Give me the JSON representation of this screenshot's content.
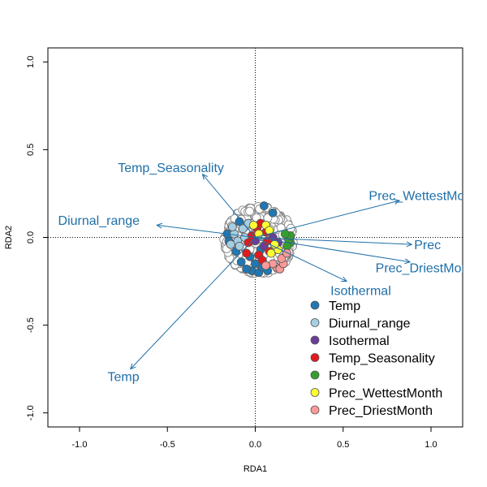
{
  "chart_data": {
    "type": "scatter",
    "title": "",
    "xlabel": "RDA1",
    "ylabel": "RDA2",
    "xlim": [
      -1.18,
      1.18
    ],
    "ylim": [
      -1.08,
      1.08
    ],
    "x_ticks": [
      -1.0,
      -0.5,
      0.0,
      0.5,
      1.0
    ],
    "x_tick_labels": [
      "-1.0",
      "-0.5",
      "0.0",
      "0.5",
      "1.0"
    ],
    "y_ticks": [
      -1.0,
      -0.5,
      0.0,
      0.5,
      1.0
    ],
    "y_tick_labels": [
      "-1.0",
      "-0.5",
      "0.0",
      "0.5",
      "1.0"
    ],
    "reference_lines": {
      "x": 0,
      "y": 0,
      "style": "dotted"
    },
    "grid": false,
    "legend_placement": "bottom-right",
    "arrow_color": "#1f6fa8",
    "arrows": [
      {
        "label": "Temp",
        "x": -0.71,
        "y": -0.75
      },
      {
        "label": "Diurnal_range",
        "x": -0.56,
        "y": 0.07
      },
      {
        "label": "Temp_Seasonality",
        "x": -0.3,
        "y": 0.36
      },
      {
        "label": "Prec_WettestMonth",
        "x": 0.82,
        "y": 0.21
      },
      {
        "label": "Prec",
        "x": 0.89,
        "y": -0.04
      },
      {
        "label": "Prec_DriestMonth",
        "x": 0.88,
        "y": -0.14
      },
      {
        "label": "Isothermal",
        "x": 0.52,
        "y": -0.25
      }
    ],
    "arrow_labels": [
      {
        "label": "Temp",
        "x": -0.75,
        "y": -0.79
      },
      {
        "label": "Diurnal_range",
        "x": -0.89,
        "y": 0.1
      },
      {
        "label": "Temp_Seasonality",
        "x": -0.48,
        "y": 0.4
      },
      {
        "label": "Prec_WettestMonth",
        "x": 0.97,
        "y": 0.24
      },
      {
        "label": "Prec",
        "x": 0.98,
        "y": -0.04
      },
      {
        "label": "Prec_DriestMonth",
        "x": 0.98,
        "y": -0.17
      },
      {
        "label": "Isothermal",
        "x": 0.6,
        "y": -0.3
      }
    ],
    "legend_entries": [
      {
        "name": "Temp",
        "color": "#1f78b4"
      },
      {
        "name": "Diurnal_range",
        "color": "#a6cee3"
      },
      {
        "name": "Isothermal",
        "color": "#6a3d9a"
      },
      {
        "name": "Temp_Seasonality",
        "color": "#e31a1c"
      },
      {
        "name": "Prec",
        "color": "#33a02c"
      },
      {
        "name": "Prec_WettestMonth",
        "color": "#ffff33"
      },
      {
        "name": "Prec_DriestMonth",
        "color": "#fb9a99"
      }
    ],
    "background_site_color": "#ffffff",
    "site_outline_color": "#888888",
    "sites_colored": [
      {
        "x": 0.05,
        "y": 0.18,
        "group": "Temp"
      },
      {
        "x": -0.02,
        "y": -0.19,
        "group": "Temp"
      },
      {
        "x": 0.02,
        "y": -0.2,
        "group": "Temp"
      },
      {
        "x": -0.05,
        "y": -0.18,
        "group": "Temp"
      },
      {
        "x": 0.04,
        "y": -0.17,
        "group": "Temp"
      },
      {
        "x": -0.08,
        "y": -0.14,
        "group": "Temp"
      },
      {
        "x": 0.0,
        "y": -0.15,
        "group": "Temp"
      },
      {
        "x": -0.11,
        "y": -0.08,
        "group": "Temp"
      },
      {
        "x": -0.15,
        "y": -0.02,
        "group": "Temp"
      },
      {
        "x": -0.16,
        "y": 0.02,
        "group": "Temp"
      },
      {
        "x": 0.07,
        "y": -0.19,
        "group": "Temp"
      },
      {
        "x": -0.03,
        "y": -0.11,
        "group": "Temp"
      },
      {
        "x": 0.1,
        "y": 0.14,
        "group": "Temp"
      },
      {
        "x": -0.09,
        "y": 0.09,
        "group": "Temp"
      },
      {
        "x": 0.03,
        "y": -0.07,
        "group": "Temp"
      },
      {
        "x": -0.12,
        "y": 0.02,
        "group": "Diurnal_range"
      },
      {
        "x": -0.1,
        "y": -0.02,
        "group": "Diurnal_range"
      },
      {
        "x": -0.07,
        "y": 0.05,
        "group": "Diurnal_range"
      },
      {
        "x": -0.13,
        "y": 0.06,
        "group": "Diurnal_range"
      },
      {
        "x": -0.06,
        "y": 0.0,
        "group": "Diurnal_range"
      },
      {
        "x": -0.09,
        "y": -0.05,
        "group": "Diurnal_range"
      },
      {
        "x": -0.04,
        "y": 0.08,
        "group": "Diurnal_range"
      },
      {
        "x": -0.14,
        "y": -0.04,
        "group": "Diurnal_range"
      },
      {
        "x": 0.1,
        "y": 0.0,
        "group": "Isothermal"
      },
      {
        "x": 0.0,
        "y": -0.02,
        "group": "Isothermal"
      },
      {
        "x": 0.05,
        "y": -0.05,
        "group": "Isothermal"
      },
      {
        "x": 0.13,
        "y": -0.03,
        "group": "Isothermal"
      },
      {
        "x": -0.04,
        "y": -0.03,
        "group": "Temp_Seasonality"
      },
      {
        "x": 0.02,
        "y": -0.1,
        "group": "Temp_Seasonality"
      },
      {
        "x": 0.06,
        "y": 0.03,
        "group": "Temp_Seasonality"
      },
      {
        "x": -0.02,
        "y": 0.01,
        "group": "Temp_Seasonality"
      },
      {
        "x": 0.04,
        "y": -0.13,
        "group": "Temp_Seasonality"
      },
      {
        "x": 0.08,
        "y": -0.08,
        "group": "Temp_Seasonality"
      },
      {
        "x": 0.01,
        "y": 0.05,
        "group": "Temp_Seasonality"
      },
      {
        "x": -0.05,
        "y": -0.09,
        "group": "Temp_Seasonality"
      },
      {
        "x": 0.07,
        "y": -0.02,
        "group": "Temp_Seasonality"
      },
      {
        "x": 0.03,
        "y": 0.08,
        "group": "Temp_Seasonality"
      },
      {
        "x": 0.2,
        "y": -0.03,
        "group": "Prec"
      },
      {
        "x": 0.19,
        "y": -0.01,
        "group": "Prec"
      },
      {
        "x": 0.2,
        "y": 0.01,
        "group": "Prec"
      },
      {
        "x": 0.18,
        "y": -0.05,
        "group": "Prec"
      },
      {
        "x": 0.17,
        "y": 0.02,
        "group": "Prec"
      },
      {
        "x": -0.01,
        "y": 0.07,
        "group": "Prec_WettestMonth"
      },
      {
        "x": 0.09,
        "y": -0.09,
        "group": "Prec_WettestMonth"
      },
      {
        "x": 0.13,
        "y": -0.07,
        "group": "Prec_WettestMonth"
      },
      {
        "x": 0.06,
        "y": 0.07,
        "group": "Prec_WettestMonth"
      },
      {
        "x": 0.11,
        "y": -0.04,
        "group": "Prec_WettestMonth"
      },
      {
        "x": 0.02,
        "y": 0.02,
        "group": "Prec_WettestMonth"
      },
      {
        "x": 0.08,
        "y": 0.04,
        "group": "Prec_WettestMonth"
      },
      {
        "x": 0.12,
        "y": -0.17,
        "group": "Prec_DriestMonth"
      },
      {
        "x": 0.14,
        "y": -0.18,
        "group": "Prec_DriestMonth"
      },
      {
        "x": 0.1,
        "y": -0.15,
        "group": "Prec_DriestMonth"
      },
      {
        "x": 0.16,
        "y": -0.15,
        "group": "Prec_DriestMonth"
      },
      {
        "x": 0.15,
        "y": -0.12,
        "group": "Prec_DriestMonth"
      },
      {
        "x": 0.18,
        "y": -0.09,
        "group": "Prec_DriestMonth"
      },
      {
        "x": 0.06,
        "y": -0.16,
        "group": "Prec_DriestMonth"
      }
    ],
    "background_site_cloud": {
      "description_free": true,
      "center": [
        0.01,
        -0.01
      ],
      "extent_x": [
        -0.18,
        0.22
      ],
      "extent_y": [
        -0.21,
        0.18
      ]
    }
  }
}
